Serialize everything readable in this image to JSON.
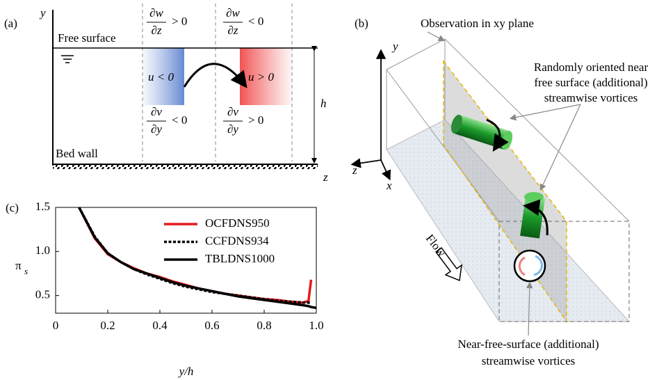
{
  "panel_a": {
    "label": "(a)",
    "y_axis": "y",
    "z_axis": "z",
    "free_surface": "Free surface",
    "bed_wall": "Bed wall",
    "depth": "h",
    "u_left": "u < 0",
    "u_right": "u > 0",
    "fractions": [
      {
        "num": "∂w",
        "den": "∂z",
        "rel": "> 0"
      },
      {
        "num": "∂w",
        "den": "∂z",
        "rel": "< 0"
      },
      {
        "num": "∂v",
        "den": "∂y",
        "rel": "< 0"
      },
      {
        "num": "∂v",
        "den": "∂y",
        "rel": "> 0"
      }
    ]
  },
  "panel_b": {
    "label": "(b)",
    "y_axis": "y",
    "z_axis": "z",
    "x_axis": "x",
    "observation": "Observation in xy plane",
    "random_vortices": [
      "Randomly oriented near",
      "free surface (additional)",
      "streamwise vortices"
    ],
    "flow": "Flow",
    "near_vortices": [
      "Near-free-surface (additional)",
      "streamwise vortices"
    ]
  },
  "chart_data": {
    "type": "line",
    "panel_label": "(c)",
    "xlabel": "y/h",
    "ylabel": "π",
    "ylabel_sub": "s",
    "x": [
      0.09,
      0.15,
      0.2,
      0.25,
      0.3,
      0.35,
      0.4,
      0.45,
      0.5,
      0.55,
      0.6,
      0.65,
      0.7,
      0.75,
      0.8,
      0.85,
      0.9,
      0.95,
      0.97,
      0.98,
      1.0
    ],
    "series": [
      {
        "name": "OCFDNS950",
        "color": "#e41a1c",
        "line_style": "solid",
        "values": [
          1.5,
          1.15,
          0.97,
          0.88,
          0.81,
          0.75,
          0.71,
          0.66,
          0.62,
          0.58,
          0.55,
          0.52,
          0.5,
          0.48,
          0.46,
          0.45,
          0.43,
          0.42,
          0.44,
          0.68,
          null
        ]
      },
      {
        "name": "CCFDNS934",
        "color": "#000000",
        "line_style": "dotted",
        "values": [
          1.5,
          1.17,
          0.98,
          0.88,
          0.8,
          0.74,
          0.69,
          0.64,
          0.6,
          0.57,
          0.54,
          0.52,
          0.5,
          0.48,
          0.46,
          0.44,
          0.43,
          0.42,
          0.42,
          0.41,
          null
        ]
      },
      {
        "name": "TBLDNS1000",
        "color": "#000000",
        "line_style": "solid",
        "values": [
          1.5,
          1.16,
          0.98,
          0.88,
          0.8,
          0.75,
          0.7,
          0.65,
          0.61,
          0.58,
          0.55,
          0.52,
          0.49,
          0.47,
          0.45,
          0.43,
          0.41,
          0.39,
          0.38,
          0.37,
          0.36
        ]
      }
    ],
    "xlim": [
      0,
      1.0
    ],
    "ylim": [
      0.3,
      1.5
    ],
    "xticks": [
      0,
      0.2,
      0.4,
      0.6,
      0.8,
      {
        "value": 1,
        "label": "1.0"
      }
    ],
    "yticks": [
      0.5,
      {
        "value": 1,
        "label": "1.0"
      },
      1.5
    ],
    "legend": "upper right",
    "grid": false
  }
}
